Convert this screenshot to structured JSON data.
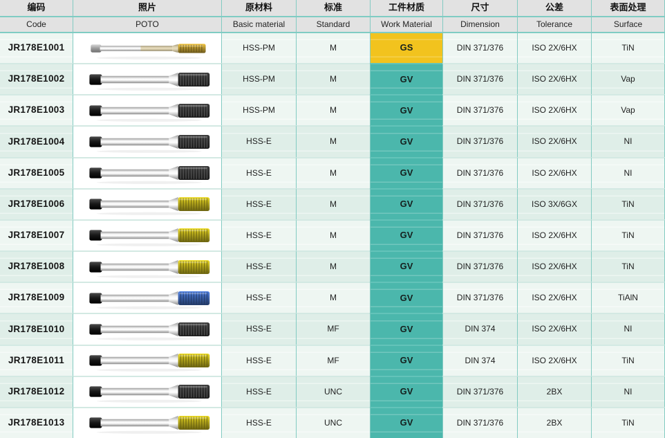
{
  "table": {
    "columns": [
      {
        "zh": "编码",
        "en": "Code"
      },
      {
        "zh": "照片",
        "en": "POTO"
      },
      {
        "zh": "原材料",
        "en": "Basic material"
      },
      {
        "zh": "标准",
        "en": "Standard"
      },
      {
        "zh": "工件材质",
        "en": "Work Material"
      },
      {
        "zh": "尺寸",
        "en": "Dimension"
      },
      {
        "zh": "公差",
        "en": "Tolerance"
      },
      {
        "zh": "表面处理",
        "en": "Surface"
      }
    ],
    "rows": [
      {
        "code": "JR178E1001",
        "photo": {
          "tip": "tin_gold",
          "shank": "silver",
          "slim": true,
          "tint": true
        },
        "basic_material": "HSS-PM",
        "standard": "M",
        "work_material": "GS",
        "dimension": "DIN 371/376",
        "tolerance": "ISO 2X/6HX",
        "surface": "TiN"
      },
      {
        "code": "JR178E1002",
        "photo": {
          "tip": "black",
          "shank": "dark"
        },
        "basic_material": "HSS-PM",
        "standard": "M",
        "work_material": "GV",
        "dimension": "DIN 371/376",
        "tolerance": "ISO 2X/6HX",
        "surface": "Vap"
      },
      {
        "code": "JR178E1003",
        "photo": {
          "tip": "black",
          "shank": "dark"
        },
        "basic_material": "HSS-PM",
        "standard": "M",
        "work_material": "GV",
        "dimension": "DIN 371/376",
        "tolerance": "ISO 2X/6HX",
        "surface": "Vap"
      },
      {
        "code": "JR178E1004",
        "photo": {
          "tip": "black",
          "shank": "dark"
        },
        "basic_material": "HSS-E",
        "standard": "M",
        "work_material": "GV",
        "dimension": "DIN 371/376",
        "tolerance": "ISO 2X/6HX",
        "surface": "NI"
      },
      {
        "code": "JR178E1005",
        "photo": {
          "tip": "black",
          "shank": "dark"
        },
        "basic_material": "HSS-E",
        "standard": "M",
        "work_material": "GV",
        "dimension": "DIN 371/376",
        "tolerance": "ISO 2X/6HX",
        "surface": "NI"
      },
      {
        "code": "JR178E1006",
        "photo": {
          "tip": "tin_yellow",
          "shank": "dark"
        },
        "basic_material": "HSS-E",
        "standard": "M",
        "work_material": "GV",
        "dimension": "DIN 371/376",
        "tolerance": "ISO 3X/6GX",
        "surface": "TiN"
      },
      {
        "code": "JR178E1007",
        "photo": {
          "tip": "tin_yellow",
          "shank": "dark"
        },
        "basic_material": "HSS-E",
        "standard": "M",
        "work_material": "GV",
        "dimension": "DIN 371/376",
        "tolerance": "ISO 2X/6HX",
        "surface": "TiN"
      },
      {
        "code": "JR178E1008",
        "photo": {
          "tip": "tin_yellow",
          "shank": "dark"
        },
        "basic_material": "HSS-E",
        "standard": "M",
        "work_material": "GV",
        "dimension": "DIN 371/376",
        "tolerance": "ISO 2X/6HX",
        "surface": "TiN"
      },
      {
        "code": "JR178E1009",
        "photo": {
          "tip": "tialn_blue",
          "shank": "dark"
        },
        "basic_material": "HSS-E",
        "standard": "M",
        "work_material": "GV",
        "dimension": "DIN 371/376",
        "tolerance": "ISO 2X/6HX",
        "surface": "TiAlN"
      },
      {
        "code": "JR178E1010",
        "photo": {
          "tip": "black",
          "shank": "dark"
        },
        "basic_material": "HSS-E",
        "standard": "MF",
        "work_material": "GV",
        "dimension": "DIN 374",
        "tolerance": "ISO 2X/6HX",
        "surface": "NI"
      },
      {
        "code": "JR178E1011",
        "photo": {
          "tip": "tin_yellow",
          "shank": "dark"
        },
        "basic_material": "HSS-E",
        "standard": "MF",
        "work_material": "GV",
        "dimension": "DIN 374",
        "tolerance": "ISO 2X/6HX",
        "surface": "TiN"
      },
      {
        "code": "JR178E1012",
        "photo": {
          "tip": "black",
          "shank": "dark"
        },
        "basic_material": "HSS-E",
        "standard": "UNC",
        "work_material": "GV",
        "dimension": "DIN 371/376",
        "tolerance": "2BX",
        "surface": "NI"
      },
      {
        "code": "JR178E1013",
        "photo": {
          "tip": "tin_yellow",
          "shank": "dark"
        },
        "basic_material": "HSS-E",
        "standard": "UNC",
        "work_material": "GV",
        "dimension": "DIN 371/376",
        "tolerance": "2BX",
        "surface": "TiN"
      }
    ]
  },
  "colors": {
    "header_bg": "#e2e2e2",
    "row_light": "#eef6f2",
    "row_dark": "#dfeee8",
    "photo_bg": "#ffffff",
    "grid_vline": "#82cbc2",
    "grid_hline_strong": "#7fccc3",
    "grid_hline_light": "#d3e9e3",
    "work_material": {
      "GS": {
        "bg": "#f2c31e",
        "sep": "#f5d45a"
      },
      "GV": {
        "bg": "#4bb7ac",
        "sep": "#63c3b9"
      }
    },
    "tap": {
      "tin_gold": "#b3922e",
      "black": "#2b2b2b",
      "tin_yellow": "#b0a31b",
      "tialn_blue": "#3a5fa8",
      "shank_dark": "#1f1f1f",
      "shank_silver": "#a8a8a8",
      "shaft_silver": "#c9c9c9"
    }
  }
}
